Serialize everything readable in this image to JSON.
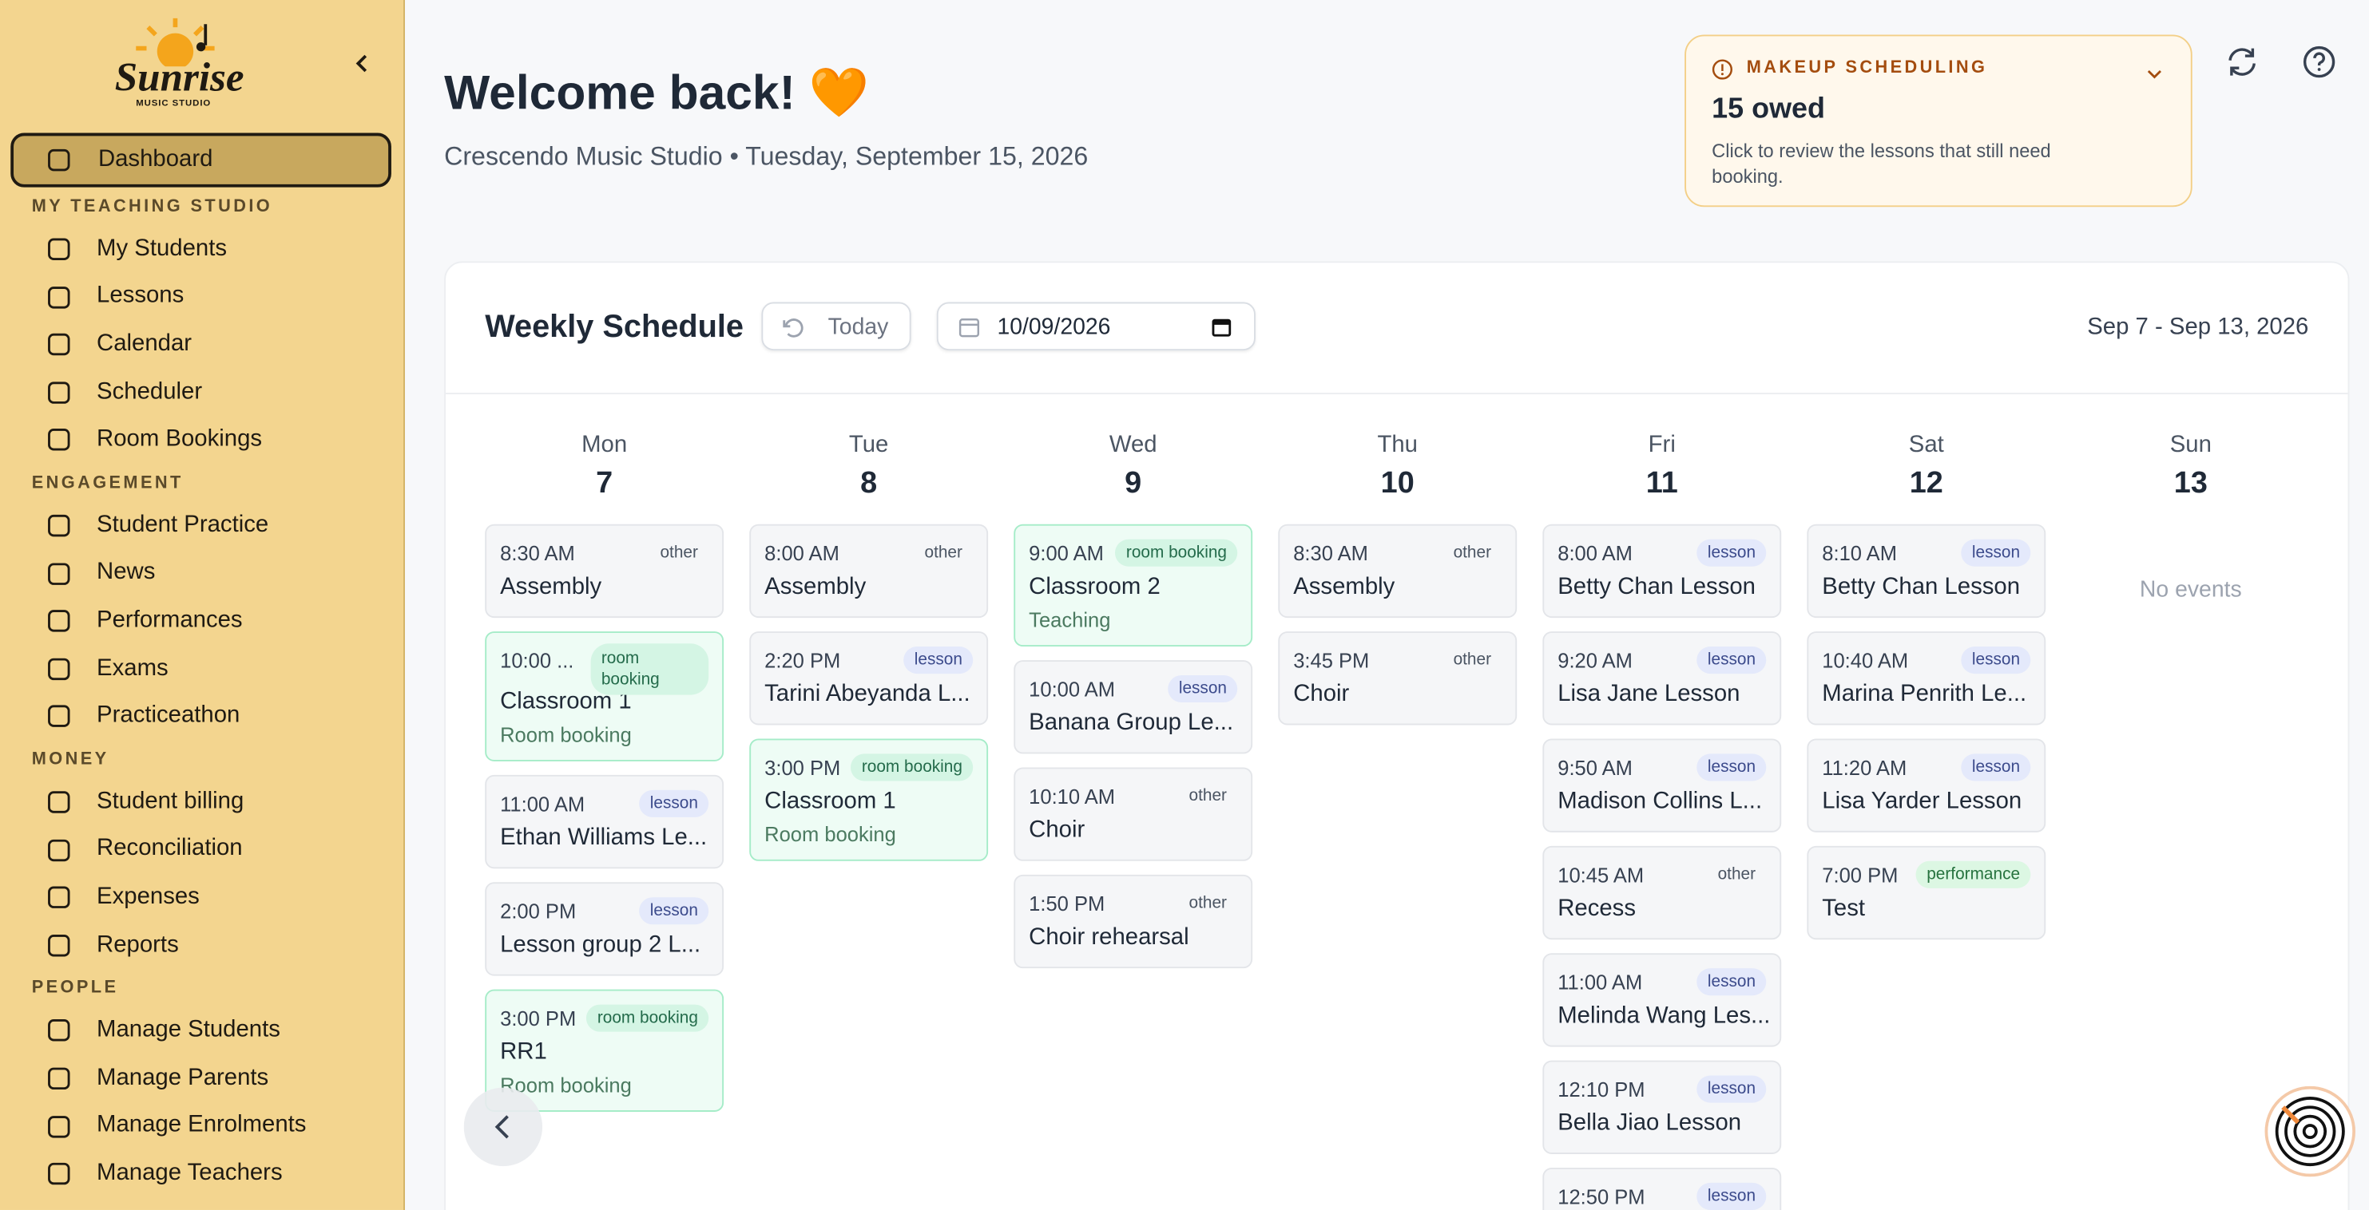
{
  "sidebar": {
    "logo": {
      "name": "Sunrise",
      "tagline": "MUSIC STUDIO"
    },
    "active": "Dashboard",
    "sections": [
      {
        "items": [
          "Dashboard"
        ]
      },
      {
        "heading": "MY TEACHING STUDIO",
        "items": [
          "My Students",
          "Lessons",
          "Calendar",
          "Scheduler",
          "Room Bookings"
        ]
      },
      {
        "heading": "ENGAGEMENT",
        "items": [
          "Student Practice",
          "News",
          "Performances",
          "Exams",
          "Practiceathon"
        ]
      },
      {
        "heading": "MONEY",
        "items": [
          "Student billing",
          "Reconciliation",
          "Expenses",
          "Reports"
        ]
      },
      {
        "heading": "PEOPLE",
        "items": [
          "Manage Students",
          "Manage Parents",
          "Manage Enrolments",
          "Manage Teachers"
        ]
      }
    ]
  },
  "header": {
    "title": "Welcome back! 🧡",
    "subtitle": "Crescendo Music Studio • Tuesday, September 15, 2026"
  },
  "makeup": {
    "label": "MAKEUP SCHEDULING",
    "count": "15 owed",
    "description": "Click to review the lessons that still need booking."
  },
  "schedule": {
    "title": "Weekly Schedule",
    "today": "Today",
    "date_input": "10/09/2026",
    "range": "Sep 7 - Sep 13, 2026",
    "days": [
      {
        "name": "Mon",
        "date": "7",
        "events": [
          {
            "time": "8:30 AM",
            "tag": "other",
            "title": "Assembly"
          },
          {
            "time": "10:00 ...",
            "tag": "room booking",
            "title": "Classroom 1",
            "subtitle": "Room booking"
          },
          {
            "time": "11:00 AM",
            "tag": "lesson",
            "title": "Ethan Williams Le..."
          },
          {
            "time": "2:00 PM",
            "tag": "lesson",
            "title": "Lesson group 2 L..."
          },
          {
            "time": "3:00 PM",
            "tag": "room booking",
            "title": "RR1",
            "subtitle": "Room booking"
          }
        ]
      },
      {
        "name": "Tue",
        "date": "8",
        "events": [
          {
            "time": "8:00 AM",
            "tag": "other",
            "title": "Assembly"
          },
          {
            "time": "2:20 PM",
            "tag": "lesson",
            "title": "Tarini Abeyanda L..."
          },
          {
            "time": "3:00 PM",
            "tag": "room booking",
            "title": "Classroom 1",
            "subtitle": "Room booking"
          }
        ]
      },
      {
        "name": "Wed",
        "date": "9",
        "events": [
          {
            "time": "9:00 AM",
            "tag": "room booking",
            "title": "Classroom 2",
            "subtitle": "Teaching"
          },
          {
            "time": "10:00 AM",
            "tag": "lesson",
            "title": "Banana Group Le..."
          },
          {
            "time": "10:10 AM",
            "tag": "other",
            "title": "Choir"
          },
          {
            "time": "1:50 PM",
            "tag": "other",
            "title": "Choir rehearsal"
          }
        ]
      },
      {
        "name": "Thu",
        "date": "10",
        "events": [
          {
            "time": "8:30 AM",
            "tag": "other",
            "title": "Assembly"
          },
          {
            "time": "3:45 PM",
            "tag": "other",
            "title": "Choir"
          }
        ]
      },
      {
        "name": "Fri",
        "date": "11",
        "events": [
          {
            "time": "8:00 AM",
            "tag": "lesson",
            "title": "Betty Chan Lesson"
          },
          {
            "time": "9:20 AM",
            "tag": "lesson",
            "title": "Lisa Jane Lesson"
          },
          {
            "time": "9:50 AM",
            "tag": "lesson",
            "title": "Madison Collins L..."
          },
          {
            "time": "10:45 AM",
            "tag": "other",
            "title": "Recess"
          },
          {
            "time": "11:00 AM",
            "tag": "lesson",
            "title": "Melinda Wang Les..."
          },
          {
            "time": "12:10 PM",
            "tag": "lesson",
            "title": "Bella Jiao Lesson"
          },
          {
            "time": "12:50 PM",
            "tag": "lesson"
          }
        ]
      },
      {
        "name": "Sat",
        "date": "12",
        "events": [
          {
            "time": "8:10 AM",
            "tag": "lesson",
            "title": "Betty Chan Lesson"
          },
          {
            "time": "10:40 AM",
            "tag": "lesson",
            "title": "Marina Penrith Le..."
          },
          {
            "time": "11:20 AM",
            "tag": "lesson",
            "title": "Lisa Yarder Lesson"
          },
          {
            "time": "7:00 PM",
            "tag": "performance",
            "title": "Test"
          }
        ]
      },
      {
        "name": "Sun",
        "date": "13",
        "empty": "No events"
      }
    ]
  }
}
